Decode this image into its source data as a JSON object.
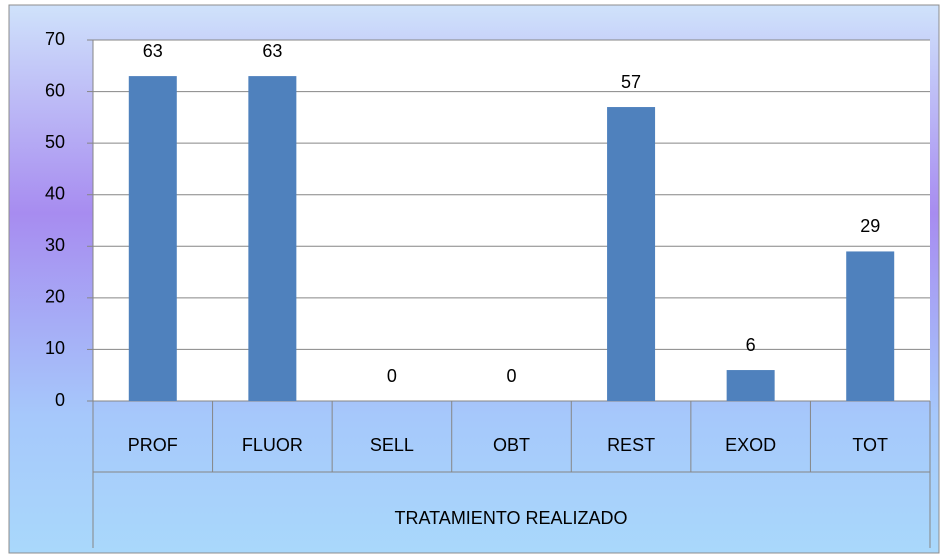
{
  "chart_data": {
    "type": "bar",
    "categories": [
      "PROF",
      "FLUOR",
      "SELL",
      "OBT",
      "REST",
      "EXOD",
      "TOT"
    ],
    "values": [
      63,
      63,
      0,
      0,
      57,
      6,
      29
    ],
    "color": "#4f81bd",
    "x_label": "TRATAMIENTO  REALIZADO",
    "ylim": [
      0,
      70
    ],
    "yticks": [
      0,
      10,
      20,
      30,
      40,
      50,
      60,
      70
    ],
    "grid": true
  }
}
